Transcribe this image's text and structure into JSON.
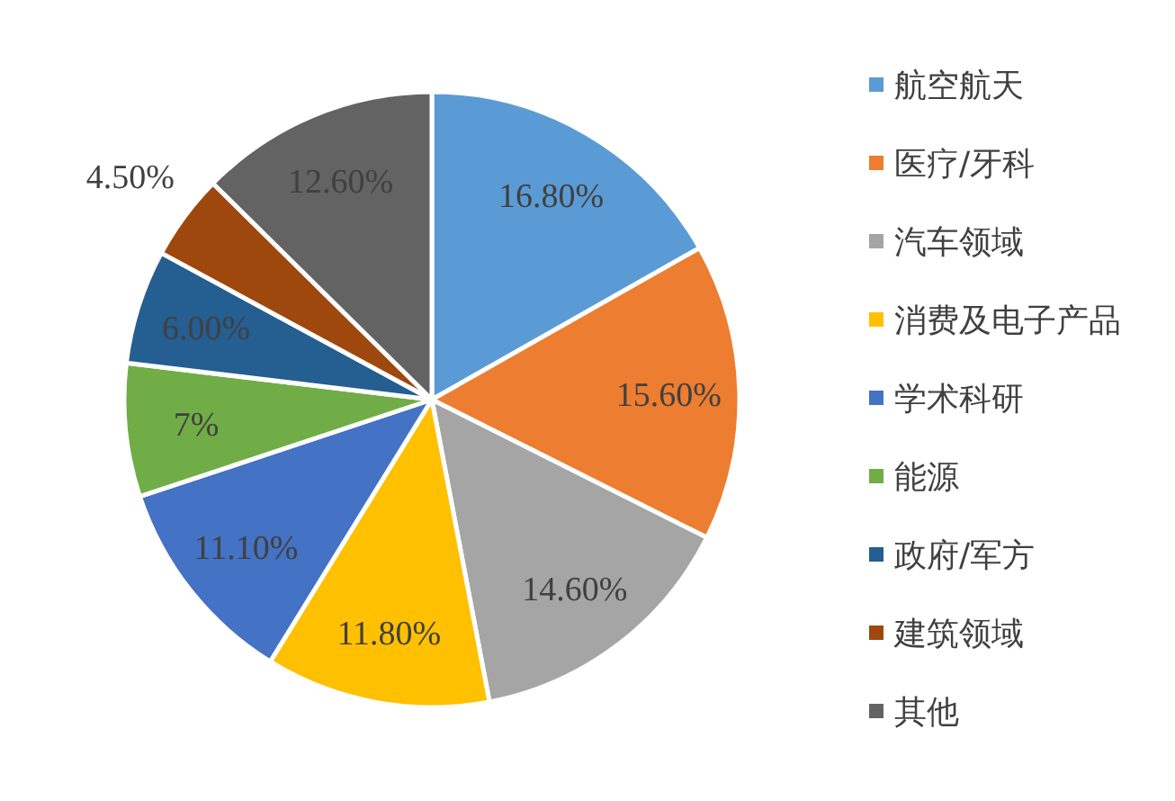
{
  "chart_data": {
    "type": "pie",
    "categories": [
      "航空航天",
      "医疗/牙科",
      "汽车领域",
      "消费及电子产品",
      "学术科研",
      "能源",
      "政府/军方",
      "建筑领域",
      "其他"
    ],
    "values": [
      16.8,
      15.6,
      14.6,
      11.8,
      11.1,
      7,
      6,
      4.5,
      12.6
    ],
    "colors": [
      "#5b9bd5",
      "#ed7d31",
      "#a5a5a5",
      "#ffc000",
      "#4472c4",
      "#70ad47",
      "#255e91",
      "#9e480e",
      "#636363"
    ],
    "value_labels": [
      "16.80%",
      "15.60%",
      "14.60%",
      "11.80%",
      "11.10%",
      "7%",
      "6.00%",
      "4.50%",
      "12.60%"
    ],
    "legend": "right"
  }
}
